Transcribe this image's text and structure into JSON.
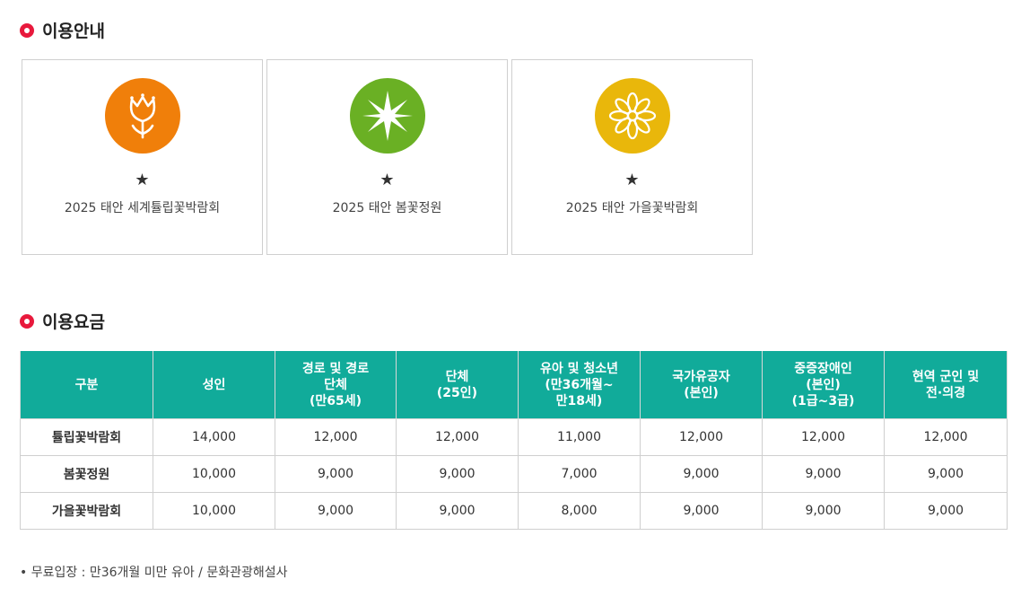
{
  "sections": {
    "usage_info": "이용안내",
    "fees": "이용요금"
  },
  "cards": [
    {
      "icon": "tulip-icon",
      "color": "#f07f0a",
      "star": "★",
      "label": "2025 태안 세계튤립꽃박람회"
    },
    {
      "icon": "compass-star-icon",
      "color": "#6ab024",
      "star": "★",
      "label": "2025 태안 봄꽃정원"
    },
    {
      "icon": "daisy-icon",
      "color": "#e9b70b",
      "star": "★",
      "label": "2025 태안 가을꽃박람회"
    }
  ],
  "table": {
    "headers": [
      "구분",
      "성인",
      "경로 및 경로\n단체\n(만65세)",
      "단체\n(25인)",
      "유아 및 청소년\n(만36개월~\n만18세)",
      "국가유공자\n(본인)",
      "중증장애인\n(본인)\n(1급~3급)",
      "현역 군인 및\n전·의경"
    ],
    "rows": [
      {
        "name": "튤립꽃박람회",
        "values": [
          "14,000",
          "12,000",
          "12,000",
          "11,000",
          "12,000",
          "12,000",
          "12,000"
        ]
      },
      {
        "name": "봄꽃정원",
        "values": [
          "10,000",
          "9,000",
          "9,000",
          "7,000",
          "9,000",
          "9,000",
          "9,000"
        ]
      },
      {
        "name": "가을꽃박람회",
        "values": [
          "10,000",
          "9,000",
          "9,000",
          "8,000",
          "9,000",
          "9,000",
          "9,000"
        ]
      }
    ]
  },
  "note": "• 무료입장 : 만36개월 미만 유아 / 문화관광해설사",
  "colors": {
    "accent": "#e8193c",
    "table_header": "#11ab9a"
  }
}
